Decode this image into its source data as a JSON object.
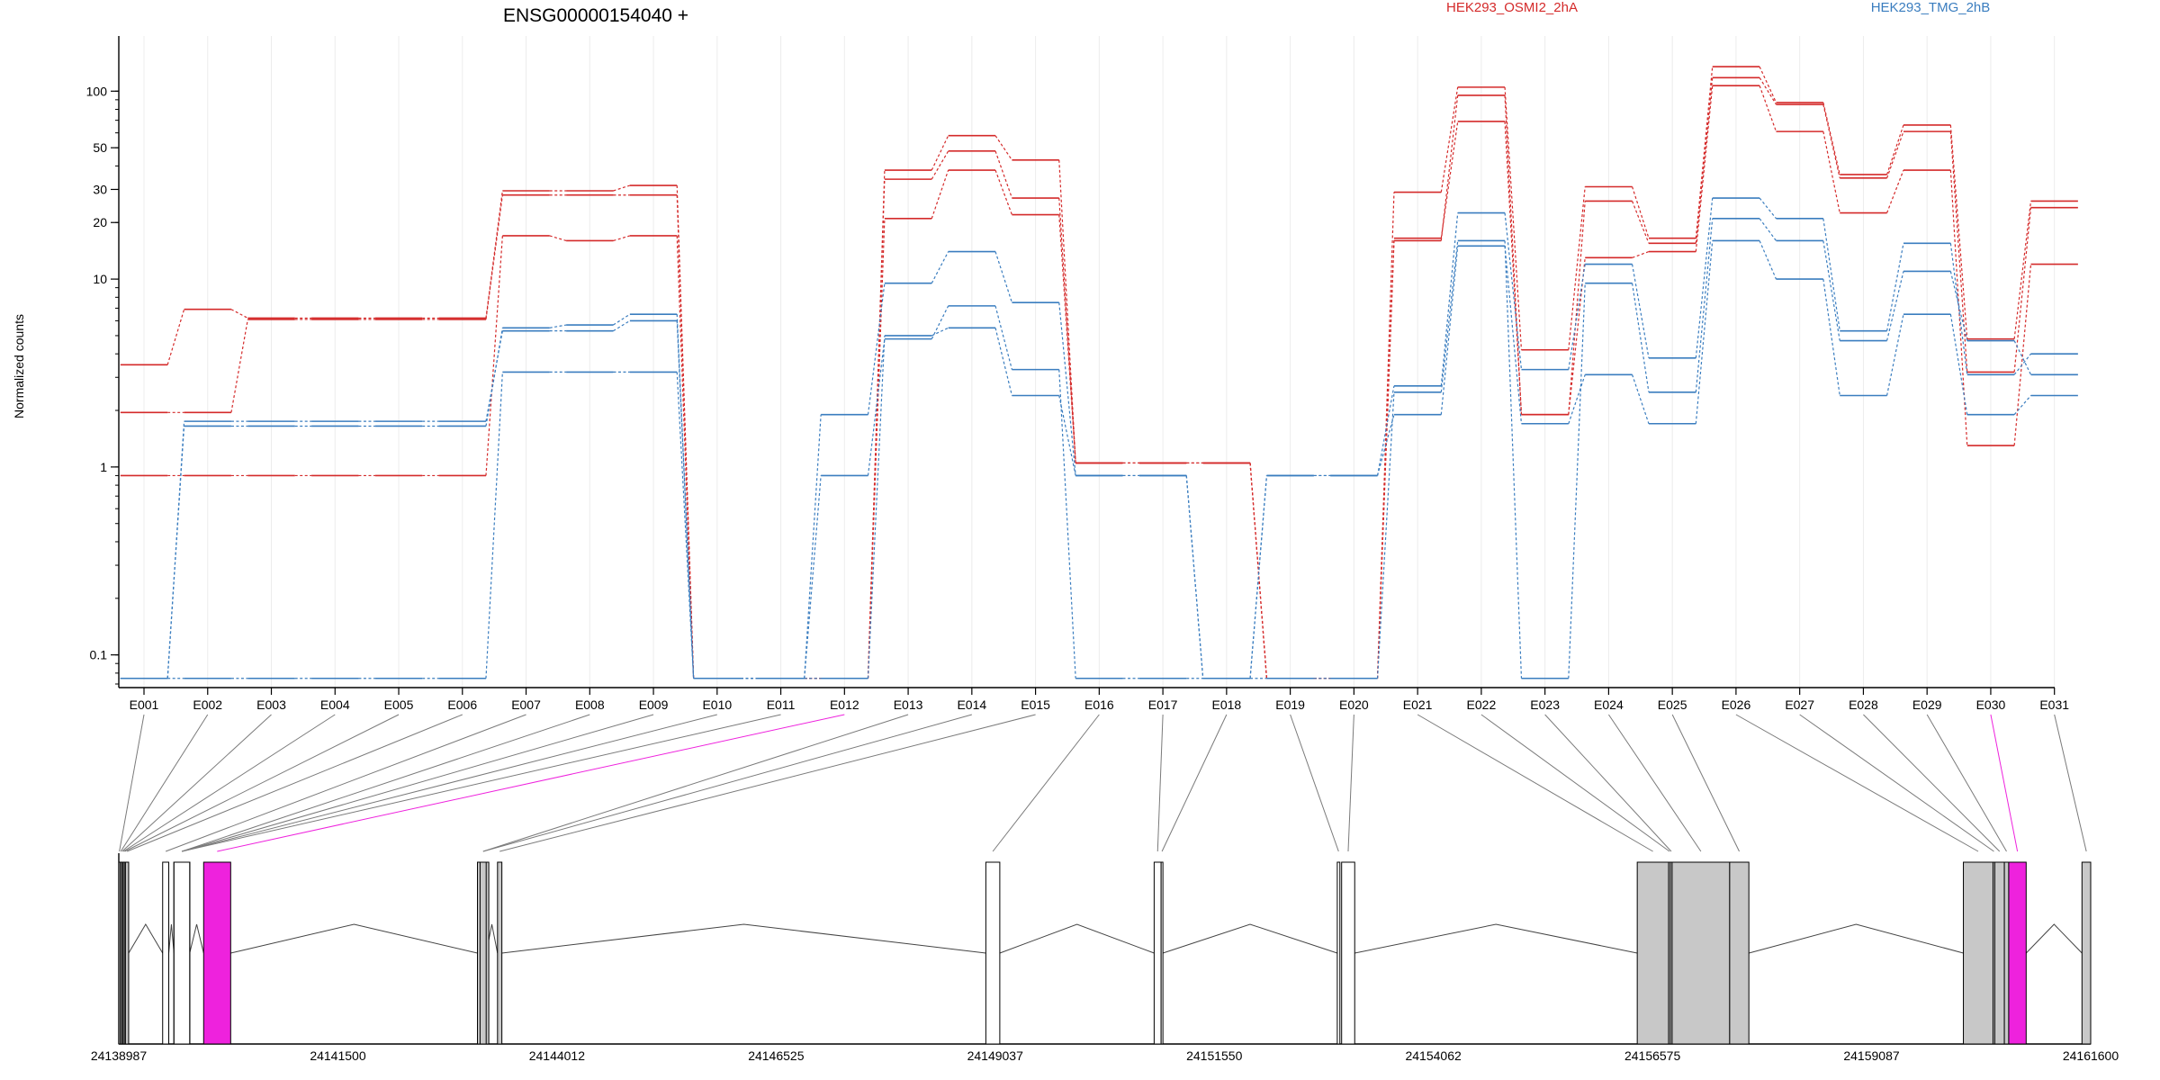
{
  "chart_data": {
    "type": "line",
    "title": "ENSG00000154040 +",
    "ylabel": "Normalized counts",
    "y_scale": "log",
    "ylim": [
      0.07,
      180
    ],
    "y_ticks": [
      {
        "value": 0.1,
        "label": "0.1"
      },
      {
        "value": 1,
        "label": "1"
      },
      {
        "value": 10,
        "label": "10"
      },
      {
        "value": 20,
        "label": "20"
      },
      {
        "value": 30,
        "label": "30"
      },
      {
        "value": 50,
        "label": "50"
      },
      {
        "value": 100,
        "label": "100"
      }
    ],
    "grid": true,
    "legend_placement": "top",
    "categories": [
      "E001",
      "E002",
      "E003",
      "E004",
      "E005",
      "E006",
      "E007",
      "E008",
      "E009",
      "E010",
      "E011",
      "E012",
      "E013",
      "E014",
      "E015",
      "E016",
      "E017",
      "E018",
      "E019",
      "E020",
      "E021",
      "E022",
      "E023",
      "E024",
      "E025",
      "E026",
      "E027",
      "E028",
      "E029",
      "E030",
      "E031"
    ],
    "groups": [
      {
        "name": "HEK293_OSMI2_2hA",
        "color": "#d42a2a"
      },
      {
        "name": "HEK293_TMG_2hB",
        "color": "#3a7dbf"
      }
    ],
    "series": [
      {
        "group": 0,
        "values": [
          3.5,
          6.9,
          6.2,
          6.2,
          6.2,
          6.2,
          29.5,
          29.5,
          31.5,
          0.075,
          0.075,
          0.075,
          38,
          58,
          43,
          1.05,
          1.05,
          1.05,
          0.075,
          0.075,
          29,
          105,
          4.2,
          31,
          16.5,
          135,
          87,
          36,
          66,
          4.8,
          26
        ]
      },
      {
        "group": 0,
        "values": [
          1.95,
          1.95,
          6.1,
          6.1,
          6.1,
          6.1,
          28,
          28,
          28,
          0.075,
          0.075,
          0.075,
          34,
          48,
          27,
          1.05,
          1.05,
          1.05,
          0.075,
          0.075,
          16,
          95,
          1.9,
          26,
          15.5,
          118,
          85,
          34.5,
          61,
          3.2,
          24
        ]
      },
      {
        "group": 0,
        "values": [
          0.9,
          0.9,
          0.9,
          0.9,
          0.9,
          0.9,
          17,
          16,
          17,
          0.075,
          0.075,
          0.075,
          21,
          38,
          22,
          1.05,
          1.05,
          1.05,
          0.075,
          0.075,
          16.5,
          69,
          1.9,
          13,
          14,
          107,
          61,
          22.5,
          38,
          1.3,
          12
        ]
      },
      {
        "group": 1,
        "values": [
          0.075,
          1.65,
          1.65,
          1.65,
          1.65,
          1.65,
          5.5,
          5.7,
          6.5,
          0.075,
          0.075,
          1.9,
          9.5,
          14,
          7.5,
          0.9,
          0.9,
          0.075,
          0.9,
          0.9,
          2.7,
          22.5,
          3.3,
          12,
          3.8,
          27,
          21,
          5.3,
          15.5,
          3.1,
          4
        ]
      },
      {
        "group": 1,
        "values": [
          0.075,
          1.75,
          1.75,
          1.75,
          1.75,
          1.75,
          5.3,
          5.3,
          6,
          0.075,
          0.075,
          0.9,
          4.8,
          7.2,
          3.3,
          0.075,
          0.075,
          0.075,
          0.075,
          0.075,
          2.5,
          16,
          0.075,
          9.5,
          2.5,
          21,
          16,
          4.7,
          11,
          4.7,
          3.1
        ]
      },
      {
        "group": 1,
        "values": [
          0.075,
          0.075,
          0.075,
          0.075,
          0.075,
          0.075,
          3.2,
          3.2,
          3.2,
          0.075,
          0.075,
          0.075,
          5,
          5.5,
          2.4,
          0.9,
          0.9,
          0.075,
          0.9,
          0.9,
          1.9,
          15,
          1.7,
          3.1,
          1.7,
          16,
          10,
          2.4,
          6.5,
          1.9,
          2.4
        ]
      }
    ],
    "genome": {
      "coord_ticks": [
        "24138987",
        "24141500",
        "24144012",
        "24146525",
        "24149037",
        "24151550",
        "24154062",
        "24156575",
        "24159087",
        "24161600"
      ],
      "coord_range": [
        24138987,
        24161600
      ],
      "highlight_color": "#ee22dd",
      "highlight_exon": "E012",
      "exons": [
        {
          "id": "E001",
          "start": 24138987,
          "end": 24139000,
          "fill": "#c8c8c8"
        },
        {
          "id": "E002",
          "start": 24139005,
          "end": 24139015,
          "fill": "#c8c8c8"
        },
        {
          "id": "E003",
          "start": 24139020,
          "end": 24139030,
          "fill": "#c8c8c8"
        },
        {
          "id": "E004",
          "start": 24139035,
          "end": 24139045,
          "fill": "#c8c8c8"
        },
        {
          "id": "E005",
          "start": 24139050,
          "end": 24139060,
          "fill": "#c8c8c8"
        },
        {
          "id": "E006",
          "start": 24139063,
          "end": 24139100,
          "fill": "#c8c8c8"
        },
        {
          "id": "E007",
          "start": 24139490,
          "end": 24139560,
          "fill": "#ffffff"
        },
        {
          "id": "E008",
          "start": 24139620,
          "end": 24139800,
          "fill": "#ffffff"
        },
        {
          "id": "E009",
          "start": 24139620,
          "end": 24139800,
          "fill": "#ffffff"
        },
        {
          "id": "E010",
          "start": 24139620,
          "end": 24139800,
          "fill": "#ffffff"
        },
        {
          "id": "E011",
          "start": 24139620,
          "end": 24139800,
          "fill": "#ffffff"
        },
        {
          "id": "E012",
          "start": 24139960,
          "end": 24140270,
          "fill": "#ee22dd"
        },
        {
          "id": "E013",
          "start": 24143100,
          "end": 24143230,
          "fill": "#c8c8c8"
        },
        {
          "id": "E014",
          "start": 24143130,
          "end": 24143200,
          "fill": "#c8c8c8"
        },
        {
          "id": "E015",
          "start": 24143330,
          "end": 24143380,
          "fill": "#c8c8c8"
        },
        {
          "id": "E016",
          "start": 24148930,
          "end": 24149090,
          "fill": "#ffffff"
        },
        {
          "id": "E017",
          "start": 24150860,
          "end": 24150940,
          "fill": "#ffffff"
        },
        {
          "id": "E018",
          "start": 24150940,
          "end": 24150960,
          "fill": "#ffffff"
        },
        {
          "id": "E019",
          "start": 24152960,
          "end": 24152990,
          "fill": "#ffffff"
        },
        {
          "id": "E020",
          "start": 24153010,
          "end": 24153160,
          "fill": "#ffffff"
        },
        {
          "id": "E021",
          "start": 24156400,
          "end": 24156760,
          "fill": "#c8c8c8"
        },
        {
          "id": "E022",
          "start": 24156760,
          "end": 24156780,
          "fill": "#c8c8c8"
        },
        {
          "id": "E023",
          "start": 24156780,
          "end": 24156800,
          "fill": "#c8c8c8"
        },
        {
          "id": "E024",
          "start": 24156800,
          "end": 24157460,
          "fill": "#c8c8c8"
        },
        {
          "id": "E025",
          "start": 24157460,
          "end": 24157680,
          "fill": "#c8c8c8"
        },
        {
          "id": "E026",
          "start": 24160140,
          "end": 24160480,
          "fill": "#c8c8c8"
        },
        {
          "id": "E027",
          "start": 24160480,
          "end": 24160500,
          "fill": "#c8c8c8"
        },
        {
          "id": "E028",
          "start": 24160500,
          "end": 24160610,
          "fill": "#c8c8c8"
        },
        {
          "id": "E029",
          "start": 24160610,
          "end": 24160660,
          "fill": "#c8c8c8"
        },
        {
          "id": "E030",
          "start": 24160660,
          "end": 24160860,
          "fill": "#ee22dd"
        },
        {
          "id": "E031",
          "start": 24161500,
          "end": 24161600,
          "fill": "#c8c8c8"
        }
      ]
    }
  }
}
